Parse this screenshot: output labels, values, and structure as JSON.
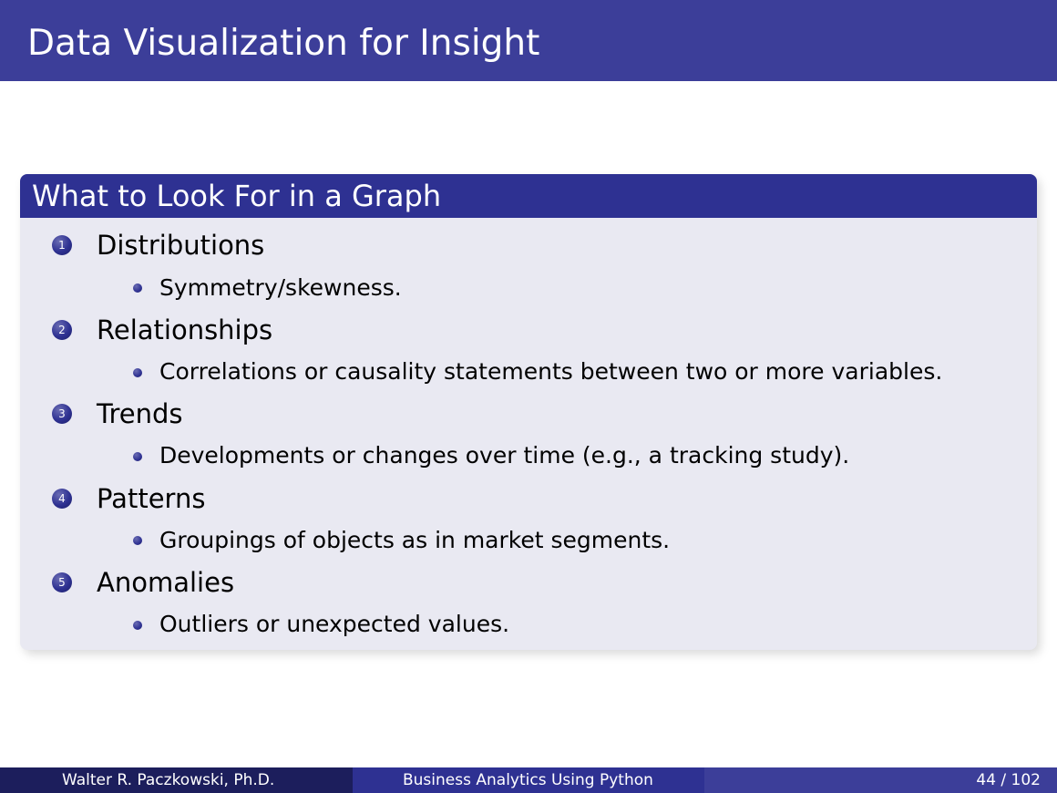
{
  "slide": {
    "title": "Data Visualization for Insight"
  },
  "block": {
    "title": "What to Look For in a Graph",
    "items": [
      {
        "number": "1",
        "label": "Distributions",
        "sub": "Symmetry/skewness."
      },
      {
        "number": "2",
        "label": "Relationships",
        "sub": "Correlations or causality statements between two or more variables."
      },
      {
        "number": "3",
        "label": "Trends",
        "sub": "Developments or changes over time (e.g., a tracking study)."
      },
      {
        "number": "4",
        "label": "Patterns",
        "sub": "Groupings of objects as in market segments."
      },
      {
        "number": "5",
        "label": "Anomalies",
        "sub": "Outliers or unexpected values."
      }
    ]
  },
  "footer": {
    "author": "Walter R. Paczkowski, Ph.D.",
    "course": "Business Analytics Using Python",
    "page": "44 / 102"
  },
  "colors": {
    "title_bar": "#3c3e99",
    "block_header": "#2e3192",
    "block_body": "#e9e9f2",
    "footer_left": "#1c1e5c",
    "footer_mid": "#2e3192",
    "footer_right": "#3c3e99"
  }
}
